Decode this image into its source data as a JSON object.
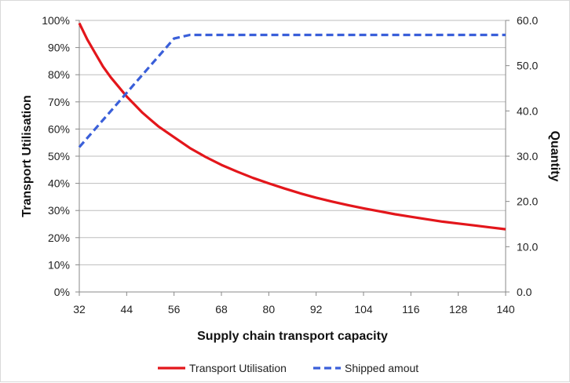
{
  "chart_data": {
    "type": "line",
    "title": "",
    "xlabel": "Supply chain transport capacity",
    "ylabel_left": "Transport Utilisation",
    "ylabel_right": "Quantity",
    "x_ticks": [
      "32",
      "44",
      "56",
      "68",
      "80",
      "92",
      "104",
      "116",
      "128",
      "140"
    ],
    "y_left_ticks": [
      "0%",
      "10%",
      "20%",
      "30%",
      "40%",
      "50%",
      "60%",
      "70%",
      "80%",
      "90%",
      "100%"
    ],
    "y_right_ticks": [
      "0.0",
      "10.0",
      "20.0",
      "30.0",
      "40.0",
      "50.0",
      "60.0"
    ],
    "x_range": [
      32,
      140
    ],
    "ylim_left": [
      0,
      1
    ],
    "ylim_right": [
      0,
      60
    ],
    "grid": "horizontal",
    "legend_position": "bottom",
    "series": [
      {
        "name": "Transport Utilisation",
        "axis": "left",
        "color": "#e3161b",
        "style": "solid",
        "x": [
          32,
          34,
          36,
          38,
          40,
          42,
          44,
          46,
          48,
          50,
          52,
          56,
          60,
          64,
          68,
          72,
          76,
          80,
          84,
          88,
          92,
          96,
          100,
          104,
          108,
          112,
          116,
          120,
          124,
          128,
          132,
          136,
          140
        ],
        "y": [
          0.99,
          0.93,
          0.88,
          0.83,
          0.79,
          0.755,
          0.72,
          0.69,
          0.66,
          0.635,
          0.61,
          0.57,
          0.53,
          0.497,
          0.468,
          0.443,
          0.42,
          0.4,
          0.381,
          0.363,
          0.347,
          0.333,
          0.32,
          0.308,
          0.297,
          0.286,
          0.277,
          0.268,
          0.259,
          0.252,
          0.245,
          0.238,
          0.231
        ]
      },
      {
        "name": "Shipped amout",
        "axis": "right",
        "color": "#3a5fd9",
        "style": "dashed",
        "x": [
          32,
          56,
          60,
          140
        ],
        "y": [
          32,
          56,
          56.8,
          56.8
        ]
      }
    ]
  }
}
